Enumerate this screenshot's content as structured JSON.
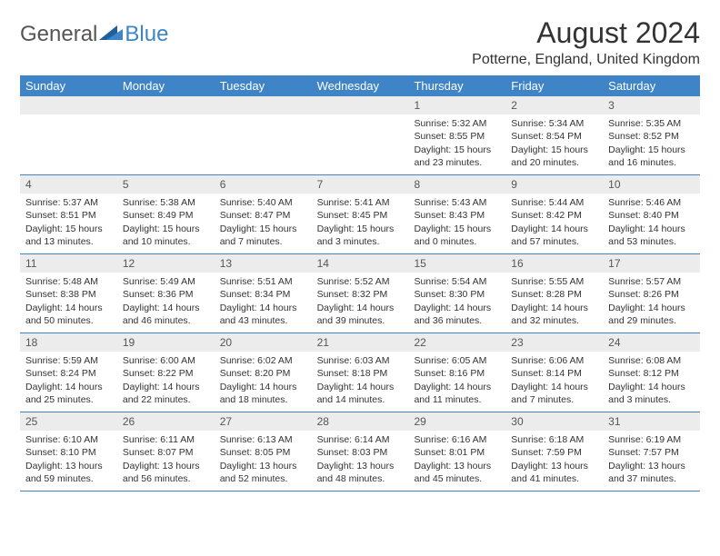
{
  "brand": {
    "text_general": "General",
    "text_blue": "Blue"
  },
  "title": "August 2024",
  "location": "Potterne, England, United Kingdom",
  "colors": {
    "header_bg": "#3e84c6",
    "header_text": "#ffffff",
    "daynum_bg": "#ececec",
    "row_border": "#3e84c6",
    "body_text": "#333333"
  },
  "typography": {
    "title_fontsize": 32,
    "location_fontsize": 16,
    "header_fontsize": 13,
    "cell_fontsize": 10.5
  },
  "day_names": [
    "Sunday",
    "Monday",
    "Tuesday",
    "Wednesday",
    "Thursday",
    "Friday",
    "Saturday"
  ],
  "weeks": [
    [
      null,
      null,
      null,
      null,
      {
        "n": "1",
        "sunrise": "5:32 AM",
        "sunset": "8:55 PM",
        "daylight": "15 hours and 23 minutes."
      },
      {
        "n": "2",
        "sunrise": "5:34 AM",
        "sunset": "8:54 PM",
        "daylight": "15 hours and 20 minutes."
      },
      {
        "n": "3",
        "sunrise": "5:35 AM",
        "sunset": "8:52 PM",
        "daylight": "15 hours and 16 minutes."
      }
    ],
    [
      {
        "n": "4",
        "sunrise": "5:37 AM",
        "sunset": "8:51 PM",
        "daylight": "15 hours and 13 minutes."
      },
      {
        "n": "5",
        "sunrise": "5:38 AM",
        "sunset": "8:49 PM",
        "daylight": "15 hours and 10 minutes."
      },
      {
        "n": "6",
        "sunrise": "5:40 AM",
        "sunset": "8:47 PM",
        "daylight": "15 hours and 7 minutes."
      },
      {
        "n": "7",
        "sunrise": "5:41 AM",
        "sunset": "8:45 PM",
        "daylight": "15 hours and 3 minutes."
      },
      {
        "n": "8",
        "sunrise": "5:43 AM",
        "sunset": "8:43 PM",
        "daylight": "15 hours and 0 minutes."
      },
      {
        "n": "9",
        "sunrise": "5:44 AM",
        "sunset": "8:42 PM",
        "daylight": "14 hours and 57 minutes."
      },
      {
        "n": "10",
        "sunrise": "5:46 AM",
        "sunset": "8:40 PM",
        "daylight": "14 hours and 53 minutes."
      }
    ],
    [
      {
        "n": "11",
        "sunrise": "5:48 AM",
        "sunset": "8:38 PM",
        "daylight": "14 hours and 50 minutes."
      },
      {
        "n": "12",
        "sunrise": "5:49 AM",
        "sunset": "8:36 PM",
        "daylight": "14 hours and 46 minutes."
      },
      {
        "n": "13",
        "sunrise": "5:51 AM",
        "sunset": "8:34 PM",
        "daylight": "14 hours and 43 minutes."
      },
      {
        "n": "14",
        "sunrise": "5:52 AM",
        "sunset": "8:32 PM",
        "daylight": "14 hours and 39 minutes."
      },
      {
        "n": "15",
        "sunrise": "5:54 AM",
        "sunset": "8:30 PM",
        "daylight": "14 hours and 36 minutes."
      },
      {
        "n": "16",
        "sunrise": "5:55 AM",
        "sunset": "8:28 PM",
        "daylight": "14 hours and 32 minutes."
      },
      {
        "n": "17",
        "sunrise": "5:57 AM",
        "sunset": "8:26 PM",
        "daylight": "14 hours and 29 minutes."
      }
    ],
    [
      {
        "n": "18",
        "sunrise": "5:59 AM",
        "sunset": "8:24 PM",
        "daylight": "14 hours and 25 minutes."
      },
      {
        "n": "19",
        "sunrise": "6:00 AM",
        "sunset": "8:22 PM",
        "daylight": "14 hours and 22 minutes."
      },
      {
        "n": "20",
        "sunrise": "6:02 AM",
        "sunset": "8:20 PM",
        "daylight": "14 hours and 18 minutes."
      },
      {
        "n": "21",
        "sunrise": "6:03 AM",
        "sunset": "8:18 PM",
        "daylight": "14 hours and 14 minutes."
      },
      {
        "n": "22",
        "sunrise": "6:05 AM",
        "sunset": "8:16 PM",
        "daylight": "14 hours and 11 minutes."
      },
      {
        "n": "23",
        "sunrise": "6:06 AM",
        "sunset": "8:14 PM",
        "daylight": "14 hours and 7 minutes."
      },
      {
        "n": "24",
        "sunrise": "6:08 AM",
        "sunset": "8:12 PM",
        "daylight": "14 hours and 3 minutes."
      }
    ],
    [
      {
        "n": "25",
        "sunrise": "6:10 AM",
        "sunset": "8:10 PM",
        "daylight": "13 hours and 59 minutes."
      },
      {
        "n": "26",
        "sunrise": "6:11 AM",
        "sunset": "8:07 PM",
        "daylight": "13 hours and 56 minutes."
      },
      {
        "n": "27",
        "sunrise": "6:13 AM",
        "sunset": "8:05 PM",
        "daylight": "13 hours and 52 minutes."
      },
      {
        "n": "28",
        "sunrise": "6:14 AM",
        "sunset": "8:03 PM",
        "daylight": "13 hours and 48 minutes."
      },
      {
        "n": "29",
        "sunrise": "6:16 AM",
        "sunset": "8:01 PM",
        "daylight": "13 hours and 45 minutes."
      },
      {
        "n": "30",
        "sunrise": "6:18 AM",
        "sunset": "7:59 PM",
        "daylight": "13 hours and 41 minutes."
      },
      {
        "n": "31",
        "sunrise": "6:19 AM",
        "sunset": "7:57 PM",
        "daylight": "13 hours and 37 minutes."
      }
    ]
  ],
  "labels": {
    "sunrise": "Sunrise: ",
    "sunset": "Sunset: ",
    "daylight": "Daylight: "
  }
}
